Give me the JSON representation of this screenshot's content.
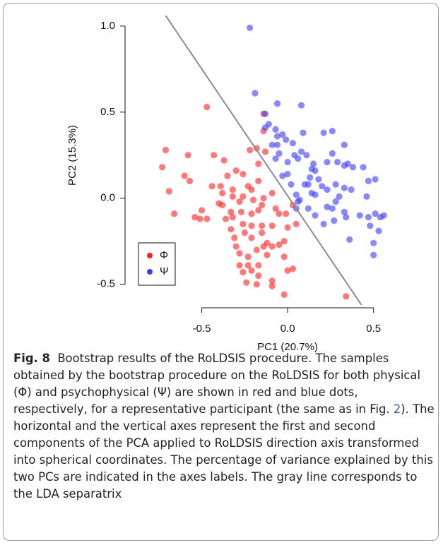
{
  "chart_data": {
    "type": "scatter",
    "x_label": "PC1 (20.7%)",
    "y_label": "PC2 (15.3%)",
    "xlim": [
      -0.93,
      0.6
    ],
    "ylim": [
      -0.62,
      1.02
    ],
    "xticks": [
      -0.5,
      {
        "value": 0,
        "label": "0.0"
      },
      0.5
    ],
    "yticks": [
      -0.5,
      {
        "value": 0,
        "label": "0.0"
      },
      0.5,
      {
        "value": 1,
        "label": "1.0"
      }
    ],
    "legend": "bottom-left",
    "separatrix": {
      "color": "#8c8c8c",
      "x": [
        -0.71,
        0.43
      ],
      "y": [
        1.06,
        -0.62
      ]
    },
    "series": [
      {
        "name": "Φ",
        "color": "#ff1f1f",
        "x": [
          -0.71,
          -0.73,
          -0.58,
          -0.43,
          -0.66,
          -0.57,
          -0.5,
          -0.47,
          -0.51,
          -0.44,
          -0.39,
          -0.38,
          -0.32,
          -0.37,
          -0.3,
          -0.26,
          -0.23,
          -0.21,
          -0.26,
          -0.28,
          -0.32,
          -0.4,
          -0.33,
          -0.27,
          -0.21,
          -0.17,
          -0.15,
          -0.14,
          -0.09,
          -0.17,
          -0.17,
          -0.13,
          -0.18,
          -0.14,
          -0.14,
          -0.22,
          -0.33,
          -0.31,
          -0.25,
          -0.21,
          -0.3,
          -0.28,
          -0.23,
          -0.18,
          -0.14,
          -0.12,
          -0.09,
          -0.05,
          -0.17,
          -0.23,
          -0.26,
          -0.28,
          -0.21,
          -0.17,
          -0.18,
          -0.09,
          -0.09,
          -0.24,
          -0.09,
          -0.15,
          -0.21,
          -0.26,
          -0.07,
          -0.05,
          -0.01,
          0,
          0.05,
          0.03,
          0,
          0.03,
          -0.02,
          -0.12,
          -0.02,
          -0.15,
          -0.02,
          0.34,
          -0.32,
          -0.36,
          -0.54,
          -0.69,
          -0.2,
          -0.35,
          -0.38,
          -0.6,
          -0.47
        ],
        "y": [
          0.28,
          0.18,
          0.25,
          0.25,
          -0.09,
          0.1,
          -0.07,
          -0.12,
          -0.12,
          0.07,
          0.07,
          0.03,
          0.05,
          0.22,
          0.16,
          0.14,
          0.07,
          0.05,
          0.01,
          -0.02,
          0.01,
          -0.03,
          -0.08,
          -0.08,
          -0.09,
          -0.07,
          -0.04,
          0,
          0.03,
          0.1,
          0.2,
          0.27,
          0.29,
          0.49,
          0.39,
          0.28,
          -0.18,
          -0.23,
          -0.2,
          -0.23,
          -0.28,
          -0.32,
          -0.34,
          -0.3,
          -0.28,
          -0.26,
          -0.28,
          -0.27,
          -0.39,
          -0.39,
          -0.43,
          -0.39,
          -0.42,
          -0.45,
          -0.5,
          -0.48,
          -0.51,
          -0.49,
          -0.16,
          -0.16,
          -0.16,
          -0.15,
          -0.06,
          -0.09,
          -0.09,
          -0.17,
          -0.15,
          -0.04,
          -0.42,
          -0.41,
          -0.34,
          -0.33,
          -0.25,
          -0.2,
          -0.56,
          -0.57,
          -0.11,
          -0.12,
          -0.11,
          0.04,
          -0.01,
          0.13,
          -0.04,
          0.13,
          0.53
        ]
      },
      {
        "name": "Ψ",
        "color": "#3b3bff",
        "x": [
          -0.22,
          -0.19,
          -0.06,
          0.08,
          -0.13,
          -0.11,
          -0.13,
          -0.07,
          -0.06,
          -0.03,
          -0.09,
          -0.06,
          -0.07,
          -0.05,
          0,
          0.03,
          0.06,
          0.08,
          0.11,
          0.14,
          0.15,
          0.09,
          0.21,
          0.26,
          0.33,
          0.26,
          0.23,
          0.29,
          0.33,
          0.35,
          0.38,
          0.44,
          0.47,
          0.51,
          0.16,
          0.13,
          0.12,
          0.02,
          0,
          -0.03,
          0.05,
          0.07,
          0.14,
          0.16,
          0.2,
          0.23,
          0.28,
          0.33,
          0.37,
          0.3,
          0.28,
          0.26,
          0.23,
          0.16,
          0.12,
          0.05,
          0.06,
          0.33,
          0.34,
          0.36,
          0.48,
          0.47,
          0.42,
          0.46,
          0.51,
          0.54,
          0.56,
          0.53,
          0.5,
          0.5,
          0.21,
          0.27,
          -0.01,
          0.04,
          0.1,
          0.18
        ],
        "y": [
          0.99,
          0.61,
          0.55,
          0.54,
          0.49,
          0.43,
          0.41,
          0.4,
          0.36,
          0.37,
          0.31,
          0.31,
          0.23,
          0.26,
          0.21,
          0.32,
          0.23,
          0.27,
          0.25,
          0.17,
          0.2,
          0.38,
          0.38,
          0.39,
          0.31,
          0.26,
          0.21,
          0.21,
          0.19,
          0.2,
          0.18,
          0.18,
          0.1,
          0.11,
          0.16,
          0.12,
          0.08,
          0.08,
          0.14,
          0.13,
          0.02,
          -0.01,
          0.03,
          0.02,
          0.07,
          0.05,
          0.08,
          0.06,
          0.05,
          0.01,
          -0.02,
          -0.06,
          -0.05,
          -0.1,
          -0.06,
          -0.06,
          -0.02,
          -0.08,
          -0.11,
          -0.24,
          -0.16,
          -0.11,
          -0.1,
          0.01,
          -0.09,
          -0.11,
          -0.1,
          -0.19,
          -0.26,
          -0.33,
          -0.15,
          -0.13,
          0.34,
          0.25,
          0.08,
          0.11
        ]
      }
    ]
  },
  "caption": {
    "label": "Fig. 8",
    "text_before": "Bootstrap results of the RoLDSIS procedure. The samples obtained by the bootstrap procedure on the RoLDSIS for both physical (Φ) and psychophysical (Ψ) are shown in red and blue dots, respectively, for a representative participant (the same as in Fig. ",
    "reference": "2",
    "text_after": "). The horizontal and the vertical axes represent the first and second components of the PCA applied to RoLDSIS direction axis transformed into spherical coordinates. The percentage of variance explained by this two PCs are indicated in the axes labels. The gray line corresponds to the LDA separatrix"
  }
}
